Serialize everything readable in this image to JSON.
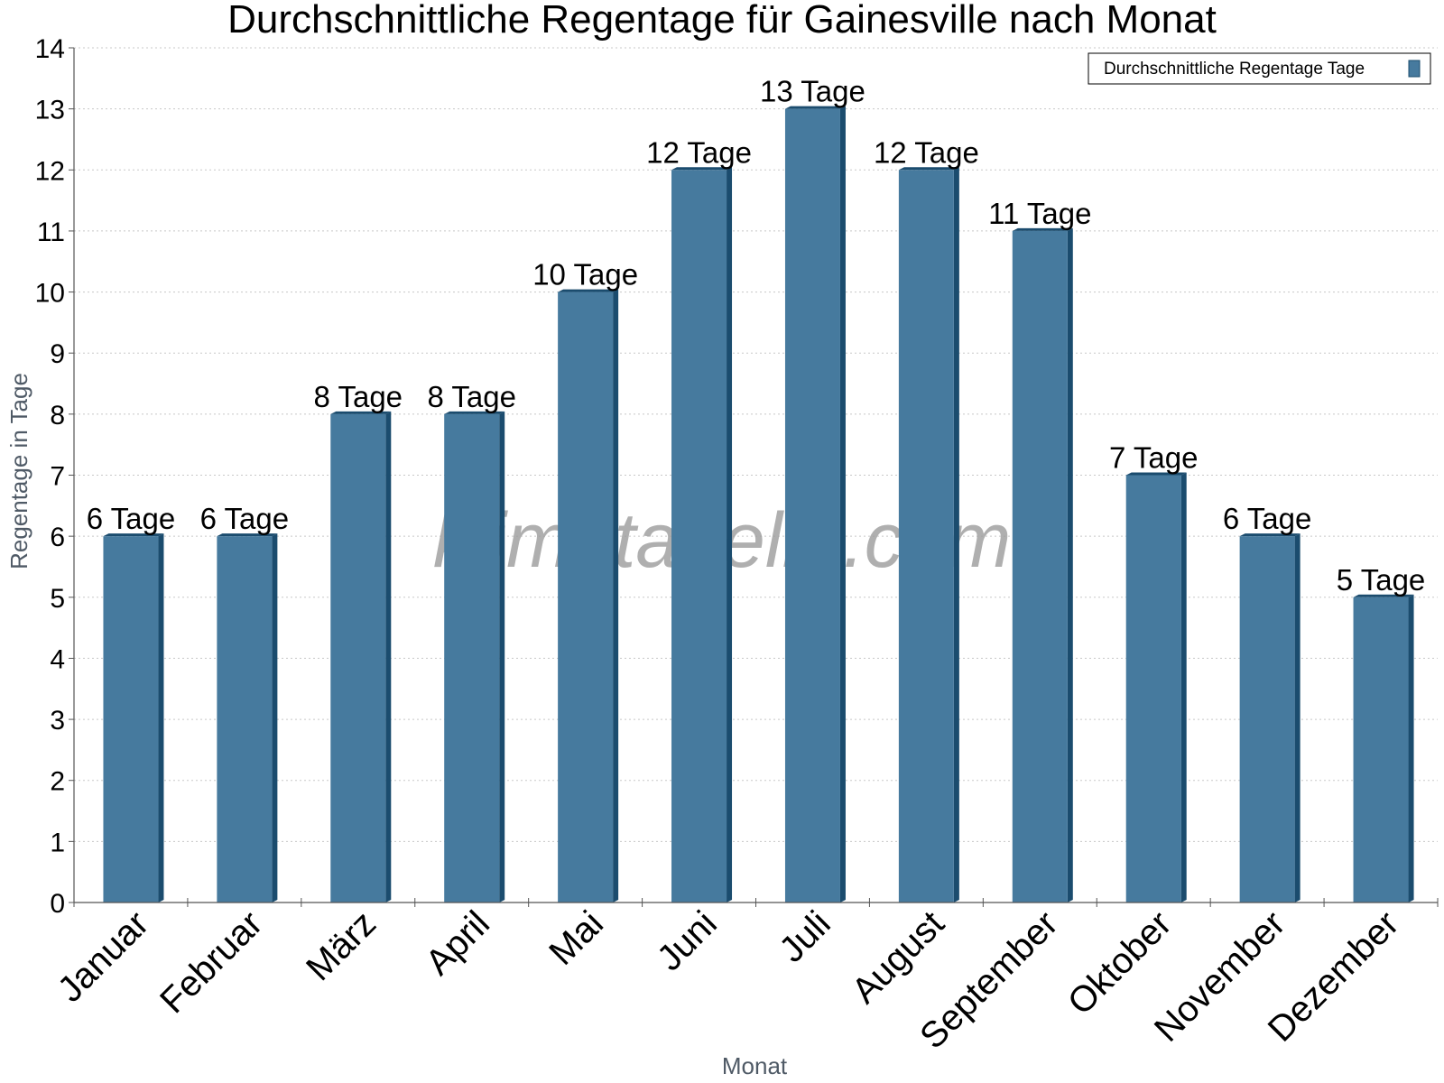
{
  "chart_data": {
    "type": "bar",
    "title": "Durchschnittliche Regentage für Gainesville nach Monat",
    "xlabel": "Monat",
    "ylabel": "Regentage in Tage",
    "ylim": [
      0,
      14
    ],
    "yticks": [
      "0",
      "1",
      "2",
      "3",
      "4",
      "5",
      "6",
      "7",
      "8",
      "9",
      "10",
      "11",
      "12",
      "13",
      "14"
    ],
    "grid": true,
    "legend_position": "top-right",
    "categories": [
      "Januar",
      "Februar",
      "März",
      "April",
      "Mai",
      "Juni",
      "Juli",
      "August",
      "September",
      "Oktober",
      "November",
      "Dezember"
    ],
    "series": [
      {
        "name": "Durchschnittliche Regentage Tage",
        "values": [
          6,
          6,
          8,
          8,
          10,
          12,
          13,
          12,
          11,
          7,
          6,
          5
        ],
        "data_labels": [
          "6 Tage",
          "6 Tage",
          "8 Tage",
          "8 Tage",
          "10 Tage",
          "12 Tage",
          "13 Tage",
          "12 Tage",
          "11 Tage",
          "7 Tage",
          "6 Tage",
          "5 Tage"
        ],
        "color": "#467a9e",
        "side_color": "#1b4c6e"
      }
    ],
    "watermark": "klimatabelle.com"
  }
}
